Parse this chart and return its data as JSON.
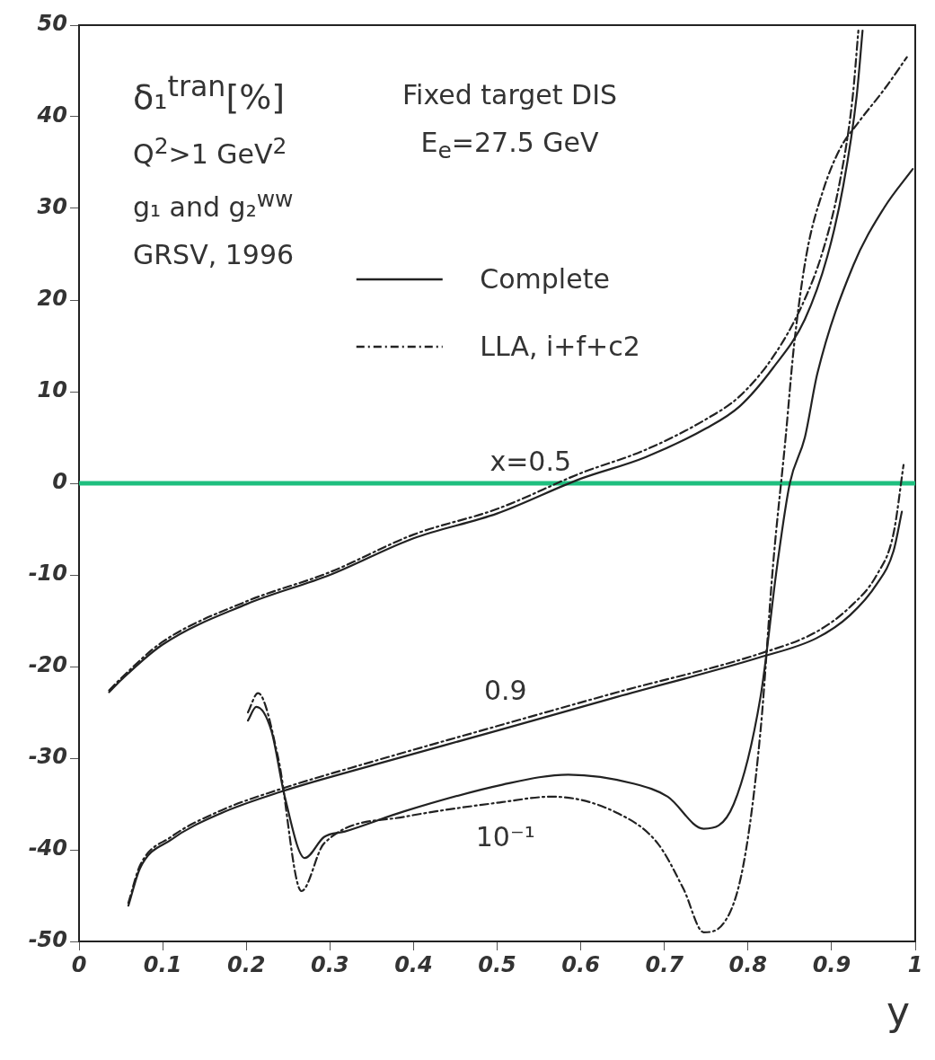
{
  "chart_data": {
    "type": "line",
    "ylabel": "δ₁$^{tran}$[%]",
    "xlabel": "y",
    "xlim": [
      0,
      1
    ],
    "xticks": [
      0,
      0.1,
      0.2,
      0.3,
      0.4,
      0.5,
      0.6,
      0.7,
      0.8,
      0.9,
      1
    ],
    "ylim": [
      -50,
      50
    ],
    "yticks": [
      -50,
      -40,
      -30,
      -20,
      -10,
      0,
      10,
      20,
      30,
      40,
      50
    ],
    "grid": false,
    "legend": "top",
    "marker": "none",
    "annotations": [
      "Q$^{2}$>1 GeV$^{2}$",
      "g₁ and g₂$^{ww}$",
      "GRSV, 1996",
      "Fixed target DIS",
      "E$_{e}$=27.5 GeV",
      "x=0.5",
      "0.9",
      "10⁻¹"
    ],
    "ref_lines": [
      {
        "axis": "y",
        "value": 0,
        "color": "#1fbf7f"
      }
    ],
    "series": [
      {
        "name": "Complete",
        "color": "#222222",
        "line_style": "solid",
        "x": [
          0.036,
          0.05,
          0.1,
          0.2,
          0.3,
          0.4,
          0.5,
          0.6,
          0.676,
          0.75,
          0.79,
          0.83,
          0.868,
          0.895,
          0.914,
          0.93,
          0.937
        ],
        "values": [
          -22.8,
          -21.5,
          -17.6,
          -13.2,
          -10,
          -6,
          -3.3,
          0.5,
          2.8,
          6,
          8.4,
          12.6,
          17.9,
          24.8,
          32.5,
          42.3,
          49.4
        ]
      },
      {
        "name": "LLA, i+f+c2",
        "color": "#222222",
        "line_style": "dashed",
        "x": [
          0.036,
          0.05,
          0.1,
          0.2,
          0.3,
          0.4,
          0.5,
          0.6,
          0.676,
          0.75,
          0.79,
          0.83,
          0.865,
          0.89,
          0.91,
          0.925,
          0.932
        ],
        "values": [
          -22.6,
          -21.3,
          -17.3,
          -12.9,
          -9.7,
          -5.6,
          -2.8,
          1.1,
          3.6,
          7,
          9.5,
          13.8,
          19.5,
          25.5,
          33,
          42,
          49.4
        ]
      },
      {
        "color": "#222222",
        "line_style": "solid",
        "x": [
          0.059,
          0.073,
          0.11,
          0.17,
          0.24,
          0.35,
          0.5,
          0.644,
          0.814,
          0.882,
          0.922,
          0.954,
          0.974,
          0.984
        ],
        "values": [
          -46.1,
          -42,
          -38.9,
          -36,
          -33.7,
          -30.8,
          -27,
          -23.3,
          -19,
          -16.9,
          -14.4,
          -11,
          -7.4,
          -3.1
        ]
      },
      {
        "color": "#222222",
        "line_style": "dashed",
        "x": [
          0.059,
          0.073,
          0.11,
          0.17,
          0.24,
          0.35,
          0.5,
          0.644,
          0.814,
          0.882,
          0.922,
          0.954,
          0.974,
          0.986
        ],
        "values": [
          -45.8,
          -41.7,
          -38.6,
          -35.7,
          -33.4,
          -30.4,
          -26.5,
          -22.8,
          -18.6,
          -16.2,
          -13.5,
          -10,
          -5.5,
          2
        ]
      },
      {
        "color": "#222222",
        "line_style": "solid",
        "x": [
          0.202,
          0.212,
          0.23,
          0.246,
          0.27,
          0.293,
          0.318,
          0.389,
          0.506,
          0.585,
          0.664,
          0.704,
          0.747,
          0.783,
          0.815,
          0.835,
          0.85,
          0.868,
          0.883,
          0.926,
          0.963,
          0.997
        ],
        "values": [
          -25.9,
          -24.4,
          -27,
          -34.2,
          -40.9,
          -38.6,
          -38,
          -35.8,
          -32.9,
          -31.8,
          -32.8,
          -34.2,
          -37.7,
          -35,
          -23.3,
          -8.9,
          0,
          5,
          12,
          23.8,
          30.1,
          34.3
        ]
      },
      {
        "color": "#222222",
        "line_style": "dashed",
        "x": [
          0.202,
          0.214,
          0.238,
          0.266,
          0.293,
          0.389,
          0.506,
          0.565,
          0.644,
          0.692,
          0.723,
          0.747,
          0.771,
          0.795,
          0.815,
          0.83,
          0.845,
          0.855,
          0.87,
          0.89,
          0.91,
          0.933,
          0.963,
          0.99
        ],
        "values": [
          -25,
          -22.9,
          -29.9,
          -44.5,
          -39.3,
          -36.4,
          -34.8,
          -34.2,
          -36,
          -39.3,
          -44.3,
          -49,
          -48,
          -41.4,
          -27,
          -8.9,
          5,
          15,
          25,
          32,
          36.5,
          39.5,
          43,
          46.5
        ]
      }
    ]
  }
}
